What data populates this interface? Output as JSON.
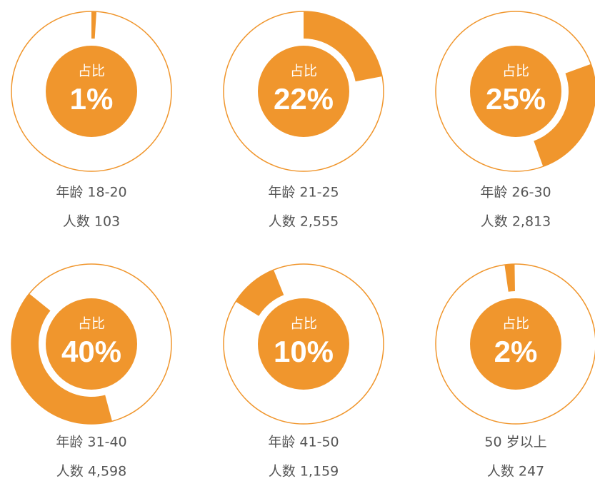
{
  "chart_data": [
    {
      "type": "donut",
      "center_text": "占比",
      "values": [
        1
      ],
      "value_labels": [
        "1%"
      ],
      "color": "#f0962d",
      "category": "年龄 18-20",
      "count_text": "人数 103"
    },
    {
      "type": "donut",
      "center_text": "占比",
      "values": [
        22
      ],
      "value_labels": [
        "22%"
      ],
      "color": "#f0962d",
      "category": "年龄 21-25",
      "count_text": "人数 2,555"
    },
    {
      "type": "donut",
      "center_text": "占比",
      "values": [
        25
      ],
      "value_labels": [
        "25%"
      ],
      "color": "#f0962d",
      "category": "年龄 26-30",
      "count_text": "人数 2,813"
    },
    {
      "type": "donut",
      "center_text": "占比",
      "values": [
        40
      ],
      "value_labels": [
        "40%"
      ],
      "color": "#f0962d",
      "category": "年龄 31-40",
      "count_text": "人数 4,598"
    },
    {
      "type": "donut",
      "center_text": "占比",
      "values": [
        10
      ],
      "value_labels": [
        "10%"
      ],
      "color": "#f0962d",
      "category": "年龄 41-50",
      "count_text": "人数 1,159"
    },
    {
      "type": "donut",
      "center_text": "占比",
      "values": [
        2
      ],
      "value_labels": [
        "2%"
      ],
      "color": "#f0962d",
      "category": "50 岁以上",
      "count_text": "人数 247"
    }
  ]
}
